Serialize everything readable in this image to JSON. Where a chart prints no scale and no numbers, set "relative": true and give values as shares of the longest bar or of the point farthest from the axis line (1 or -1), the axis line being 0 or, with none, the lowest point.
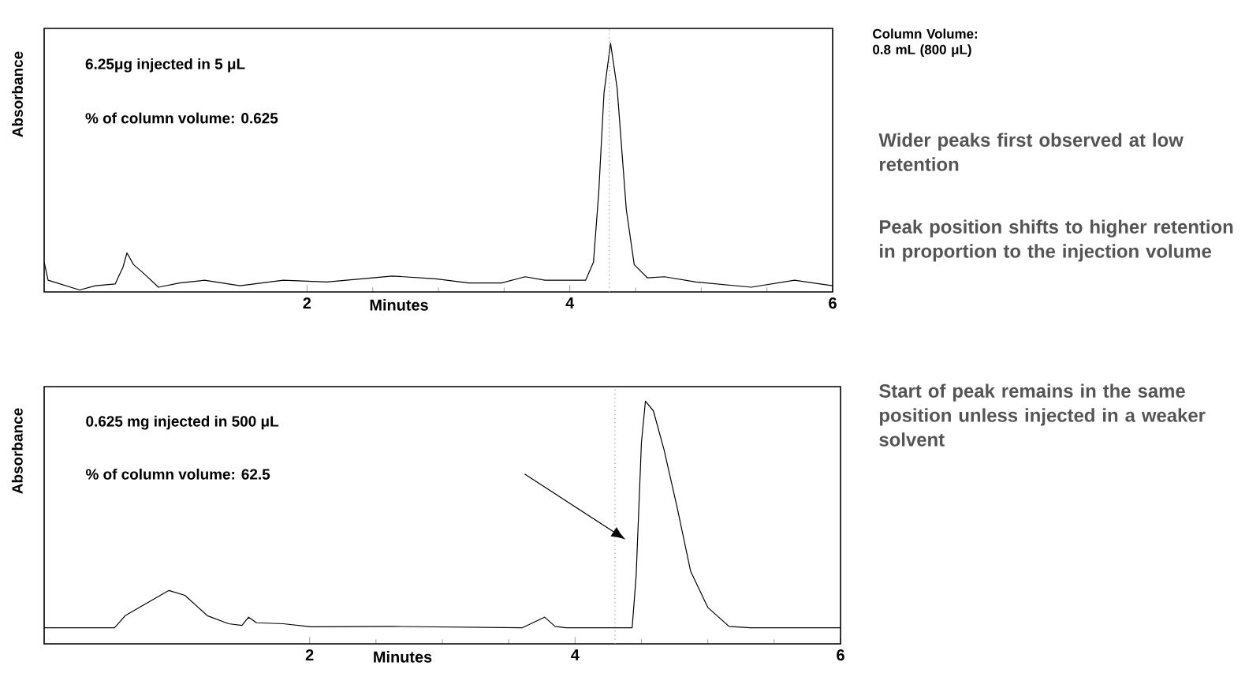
{
  "chart_data": [
    {
      "type": "line",
      "xlabel": "Minutes",
      "ylabel": "Absorbance",
      "relative": true,
      "xlim": [
        0,
        6
      ],
      "xticks": [
        2,
        4,
        6
      ],
      "tick_labels": "x",
      "ref_lines": [
        {
          "axis": "x",
          "value": 4.3,
          "color": "#999999",
          "line_style": "dotted"
        }
      ],
      "annotations": [
        "6.25μg injected in 5 μL",
        "% of column volume: 0.625",
        "Column Volume:\n0.8 mL (800 μL)",
        "Wider peaks first observed at low retention",
        "Peak position shifts to higher retention in proportion to the injection volume",
        "Start of peak remains in the same position unless injected in a weaker solvent"
      ],
      "series": [
        {
          "color": "#000000",
          "x": [
            0,
            0.03,
            0.27,
            0.39,
            0.54,
            0.6,
            0.63,
            0.68,
            0.75,
            0.87,
            1.03,
            1.22,
            1.49,
            1.82,
            2.15,
            2.65,
            2.98,
            3.23,
            3.48,
            3.66,
            3.81,
            4.12,
            4.18,
            4.22,
            4.26,
            4.31,
            4.36,
            4.43,
            4.49,
            4.59,
            4.72,
            4.96,
            5.38,
            5.71,
            6.0
          ],
          "values": [
            0.12,
            0.047,
            0.008,
            0.025,
            0.032,
            0.1,
            0.157,
            0.11,
            0.078,
            0.019,
            0.036,
            0.047,
            0.025,
            0.047,
            0.04,
            0.064,
            0.053,
            0.036,
            0.036,
            0.061,
            0.047,
            0.047,
            0.12,
            0.4,
            0.8,
            1.0,
            0.82,
            0.33,
            0.11,
            0.057,
            0.061,
            0.04,
            0.019,
            0.047,
            0.025
          ]
        }
      ]
    },
    {
      "type": "line",
      "xlabel": "Minutes",
      "ylabel": "Absorbance",
      "relative": true,
      "xlim": [
        0,
        6
      ],
      "xticks": [
        2,
        4,
        6
      ],
      "tick_labels": "x",
      "ref_lines": [
        {
          "axis": "x",
          "value": 4.3,
          "color": "#999999",
          "line_style": "dotted"
        }
      ],
      "annotations": [
        "0.625 mg injected in 500 μL",
        "% of column volume: 62.5"
      ],
      "series": [
        {
          "color": "#000000",
          "x": [
            0,
            0.53,
            0.61,
            0.78,
            0.94,
            1.06,
            1.23,
            1.39,
            1.49,
            1.54,
            1.6,
            1.8,
            2.01,
            2.62,
            3.6,
            3.77,
            3.85,
            3.93,
            4.43,
            4.46,
            4.5,
            4.53,
            4.59,
            4.67,
            4.77,
            4.87,
            5.0,
            5.16,
            5.32,
            6.0
          ],
          "values": [
            0.066,
            0.066,
            0.116,
            0.17,
            0.22,
            0.2,
            0.116,
            0.083,
            0.076,
            0.11,
            0.087,
            0.083,
            0.07,
            0.072,
            0.066,
            0.11,
            0.072,
            0.066,
            0.066,
            0.28,
            0.83,
            1.0,
            0.96,
            0.8,
            0.56,
            0.3,
            0.15,
            0.072,
            0.066,
            0.066
          ]
        }
      ]
    }
  ]
}
